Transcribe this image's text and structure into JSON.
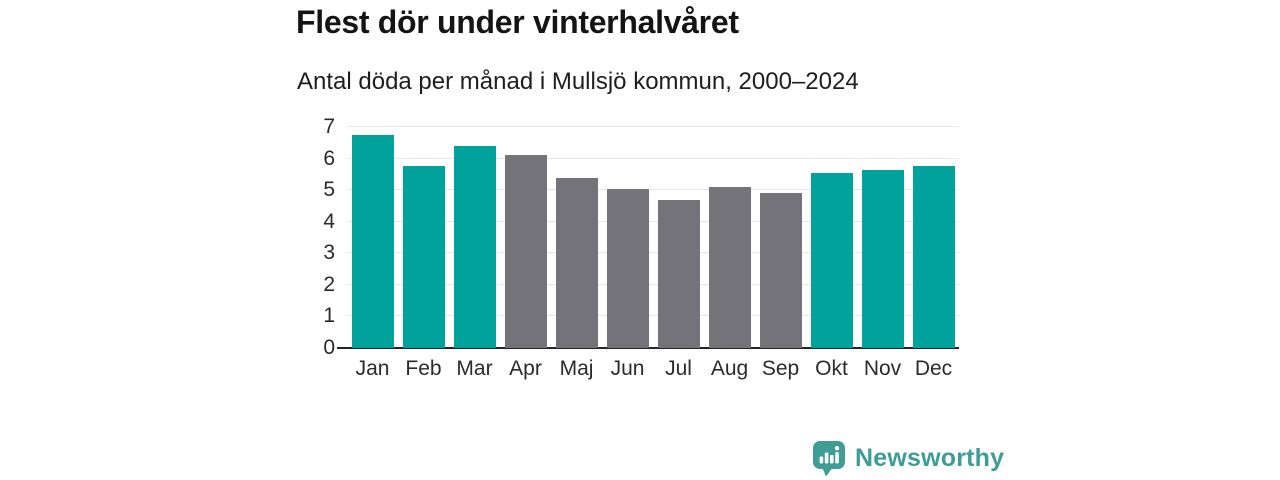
{
  "title": "Flest dör under vinterhalvåret",
  "subtitle": "Antal döda per månad i Mullsjö kommun, 2000–2024",
  "colors": {
    "winter": "#00a39c",
    "summer": "#75737a",
    "gridline": "#e7e7e7",
    "axis_line": "#26242a",
    "title_text": "#141414",
    "tick_text": "#2b2b2b",
    "logo": "#3f9c96"
  },
  "chart_data": {
    "type": "bar",
    "title": "Flest dör under vinterhalvåret",
    "subtitle": "Antal döda per månad i Mullsjö kommun, 2000–2024",
    "categories": [
      "Jan",
      "Feb",
      "Mar",
      "Apr",
      "Maj",
      "Jun",
      "Jul",
      "Aug",
      "Sep",
      "Okt",
      "Nov",
      "Dec"
    ],
    "values": [
      6.75,
      5.75,
      6.4,
      6.1,
      5.4,
      5.05,
      4.7,
      5.1,
      4.9,
      5.55,
      5.65,
      5.75
    ],
    "bar_color_keys": [
      "winter",
      "winter",
      "winter",
      "summer",
      "summer",
      "summer",
      "summer",
      "summer",
      "summer",
      "winter",
      "winter",
      "winter"
    ],
    "xlabel": "",
    "ylabel": "",
    "ylim": [
      0,
      7
    ],
    "yticks": [
      0,
      1,
      2,
      3,
      4,
      5,
      6,
      7
    ],
    "grid": true,
    "legend": false
  },
  "branding": {
    "logo_text": "Newsworthy",
    "logo_icon": "bar-chart-speech-bubble-icon"
  }
}
